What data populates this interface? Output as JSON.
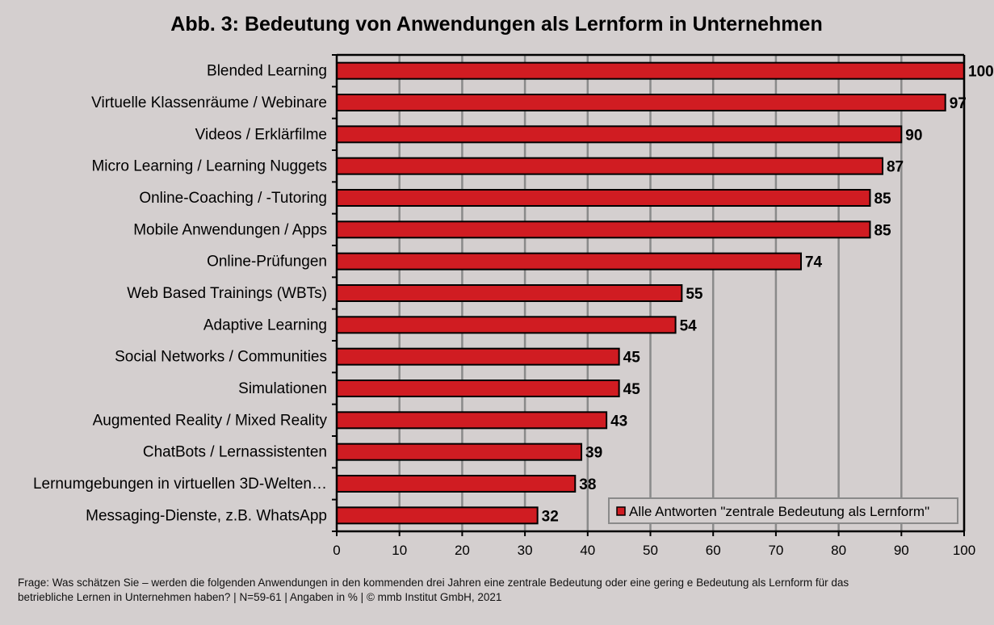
{
  "chart_data": {
    "type": "bar",
    "orientation": "horizontal",
    "title": "Abb. 3: Bedeutung von Anwendungen als Lernform in Unternehmen",
    "categories": [
      "Blended Learning",
      "Virtuelle Klassenräume / Webinare",
      "Videos / Erklärfilme",
      "Micro Learning / Learning Nuggets",
      "Online-Coaching / -Tutoring",
      "Mobile Anwendungen / Apps",
      "Online-Prüfungen",
      "Web Based Trainings (WBTs)",
      "Adaptive Learning",
      "Social Networks / Communities",
      "Simulationen",
      "Augmented Reality / Mixed Reality",
      "ChatBots / Lernassistenten",
      "Lernumgebungen in virtuellen 3D-Welten…",
      "Messaging-Dienste, z.B. WhatsApp"
    ],
    "series": [
      {
        "name": "Alle Antworten \"zentrale Bedeutung als Lernform\"",
        "values": [
          100,
          97,
          90,
          87,
          85,
          85,
          74,
          55,
          54,
          45,
          45,
          43,
          39,
          38,
          32
        ],
        "color": "#d01c22"
      }
    ],
    "xlim": [
      0,
      100
    ],
    "x_ticks": [
      0,
      10,
      20,
      30,
      40,
      50,
      60,
      70,
      80,
      90,
      100
    ],
    "grid": "vertical",
    "legend_position": "bottom-right",
    "colors": {
      "bar": "#d01c22",
      "background": "#d4cfcf",
      "grid": "#8a8a8a"
    }
  },
  "footer": {
    "line1": "Frage: Was schätzen Sie – werden die folgenden Anwendungen in den kommenden drei Jahren eine zentrale Bedeutung oder eine gering e Bedeutung als Lernform für das",
    "line2": "betriebliche Lernen in Unternehmen haben?  | N=59-61 | Angaben in % | © mmb Institut GmbH, 2021"
  }
}
